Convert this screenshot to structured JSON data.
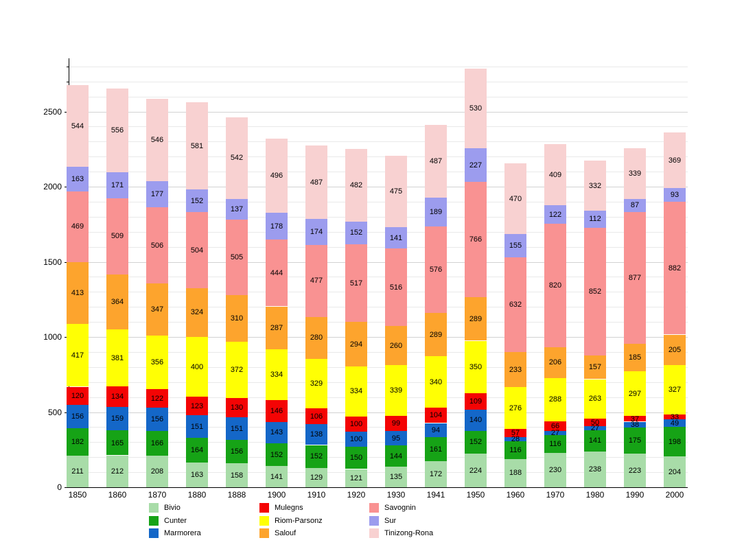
{
  "chart_data": {
    "type": "bar",
    "stacked": true,
    "grid": true,
    "legend_position": "bottom",
    "xlabel": "",
    "ylabel": "",
    "ylim": [
      0,
      2840
    ],
    "y_ticks": [
      0,
      500,
      1000,
      1500,
      2000,
      2500
    ],
    "minor_grid_step": 100,
    "categories": [
      "1850",
      "1860",
      "1870",
      "1880",
      "1888",
      "1900",
      "1910",
      "1920",
      "1930",
      "1941",
      "1950",
      "1960",
      "1970",
      "1980",
      "1990",
      "2000"
    ],
    "series": [
      {
        "name": "Bivio",
        "color": "#a8dca8",
        "values": [
          211,
          212,
          208,
          163,
          158,
          141,
          129,
          121,
          135,
          172,
          224,
          188,
          230,
          238,
          223,
          204
        ]
      },
      {
        "name": "Cunter",
        "color": "#16a316",
        "values": [
          182,
          165,
          166,
          164,
          156,
          152,
          152,
          150,
          144,
          161,
          152,
          116,
          116,
          141,
          175,
          198
        ]
      },
      {
        "name": "Marmorera",
        "color": "#1467c8",
        "values": [
          156,
          159,
          156,
          151,
          151,
          143,
          138,
          100,
          95,
          94,
          140,
          28,
          27,
          27,
          38,
          49
        ]
      },
      {
        "name": "Mulegns",
        "color": "#f40404",
        "values": [
          120,
          134,
          122,
          123,
          130,
          146,
          106,
          100,
          99,
          104,
          109,
          57,
          66,
          50,
          37,
          33
        ]
      },
      {
        "name": "Riom-Parsonz",
        "color": "#ffff04",
        "values": [
          417,
          381,
          356,
          400,
          372,
          334,
          329,
          334,
          339,
          340,
          350,
          276,
          288,
          263,
          297,
          327
        ]
      },
      {
        "name": "Salouf",
        "color": "#fda42d",
        "values": [
          413,
          364,
          347,
          324,
          310,
          287,
          280,
          294,
          260,
          289,
          289,
          233,
          206,
          157,
          185,
          205
        ]
      },
      {
        "name": "Savognin",
        "color": "#f99292",
        "values": [
          469,
          509,
          506,
          504,
          505,
          444,
          477,
          517,
          516,
          576,
          766,
          632,
          820,
          852,
          877,
          882
        ]
      },
      {
        "name": "Sur",
        "color": "#9c9cee",
        "values": [
          163,
          171,
          177,
          152,
          137,
          178,
          174,
          152,
          141,
          189,
          227,
          155,
          122,
          112,
          87,
          93
        ]
      },
      {
        "name": "Tinizong-Rona",
        "color": "#f8d1d1",
        "values": [
          544,
          556,
          546,
          581,
          542,
          496,
          487,
          482,
          475,
          487,
          530,
          470,
          409,
          332,
          339,
          369
        ]
      }
    ],
    "legend_columns": [
      [
        0,
        1,
        2
      ],
      [
        3,
        4,
        5
      ],
      [
        6,
        7,
        8
      ]
    ]
  }
}
